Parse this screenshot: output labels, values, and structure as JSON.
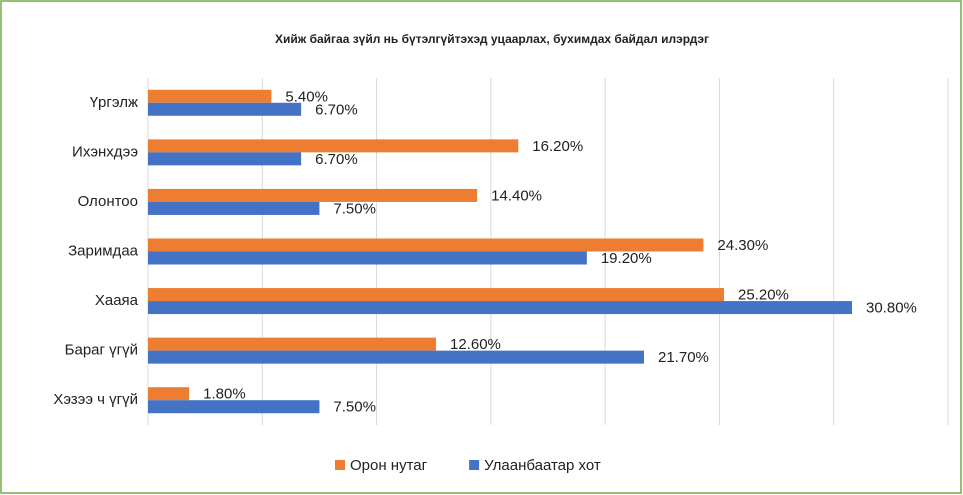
{
  "chart_data": {
    "type": "barh",
    "title": "Хийж байгаа зүйл нь бүтэлгүйтэхэд уцаарлах, бухимдах байдал илэрдэг",
    "categories": [
      "Үргэлж",
      "Ихэнхдээ",
      "Олонтоо",
      "Заримдаа",
      "Хааяа",
      "Бараг үгүй",
      "Хэзээ ч үгүй"
    ],
    "series": [
      {
        "name": "Орон нутаг",
        "color": "#ed7d31",
        "values": [
          5.4,
          16.2,
          14.4,
          24.3,
          25.2,
          12.6,
          1.8
        ],
        "value_labels": [
          "5.40%",
          "16.20%",
          "14.40%",
          "24.30%",
          "25.20%",
          "12.60%",
          "1.80%"
        ]
      },
      {
        "name": "Улаанбаатар хот",
        "color": "#4472c4",
        "values": [
          6.7,
          6.7,
          7.5,
          19.2,
          30.8,
          21.7,
          7.5
        ],
        "value_labels": [
          "6.70%",
          "6.70%",
          "7.50%",
          "19.20%",
          "30.80%",
          "21.70%",
          "7.50%"
        ]
      }
    ],
    "xlim": [
      0,
      35
    ],
    "xticks": [
      0,
      5,
      10,
      15,
      20,
      25,
      30,
      35
    ],
    "grid": true,
    "legend": "bottom"
  }
}
